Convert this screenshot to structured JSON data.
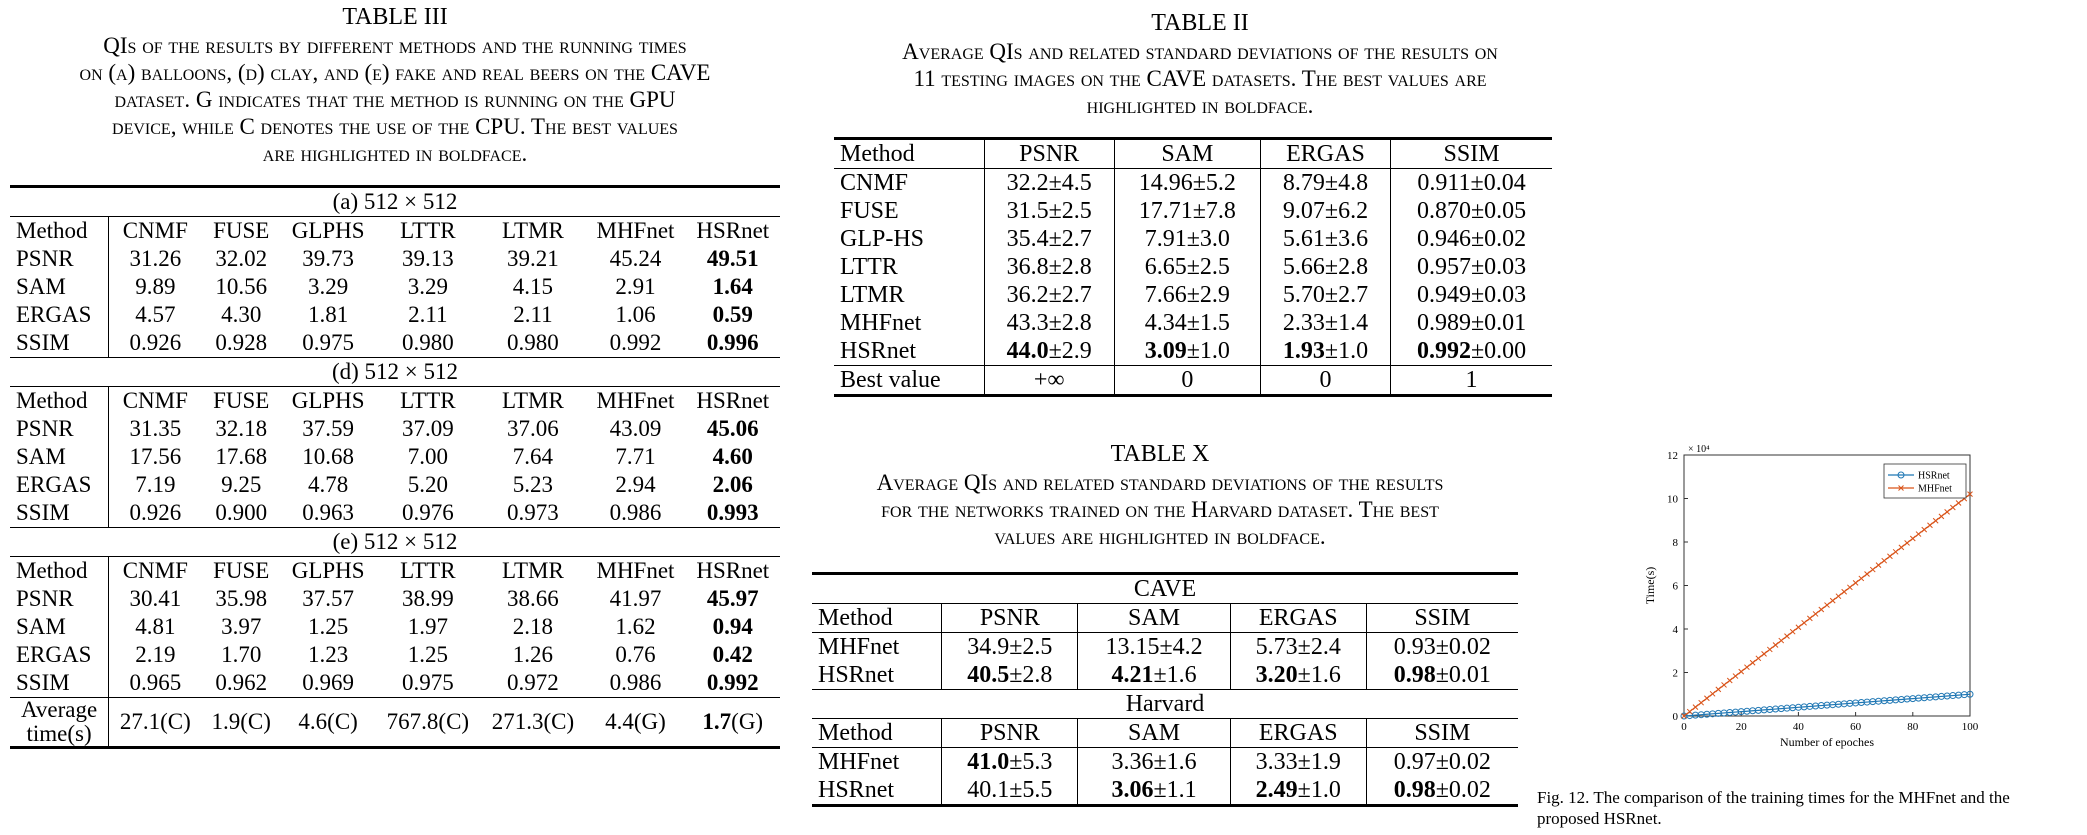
{
  "t3": {
    "label": "TABLE III",
    "caption_lines": [
      "QIs of the results by different methods and the running times",
      "on (a) balloons, (d) clay, and (e) fake and real beers on the CAVE",
      "dataset. G indicates that the method is running on the GPU",
      "device, while C denotes the use of the CPU. The best values",
      "are highlighted in boldface."
    ],
    "sub_a": "(a) 512 × 512",
    "sub_d": "(d) 512 × 512",
    "sub_e": "(e) 512 × 512",
    "headers": [
      "Method",
      "CNMF",
      "FUSE",
      "GLPHS",
      "LTTR",
      "LTMR",
      "MHFnet",
      "HSRnet"
    ],
    "a_rows": [
      [
        "PSNR",
        "31.26",
        "32.02",
        "39.73",
        "39.13",
        "39.21",
        "45.24",
        "49.51"
      ],
      [
        "SAM",
        "9.89",
        "10.56",
        "3.29",
        "3.29",
        "4.15",
        "2.91",
        "1.64"
      ],
      [
        "ERGAS",
        "4.57",
        "4.30",
        "1.81",
        "2.11",
        "2.11",
        "1.06",
        "0.59"
      ],
      [
        "SSIM",
        "0.926",
        "0.928",
        "0.975",
        "0.980",
        "0.980",
        "0.992",
        "0.996"
      ]
    ],
    "d_rows": [
      [
        "PSNR",
        "31.35",
        "32.18",
        "37.59",
        "37.09",
        "37.06",
        "43.09",
        "45.06"
      ],
      [
        "SAM",
        "17.56",
        "17.68",
        "10.68",
        "7.00",
        "7.64",
        "7.71",
        "4.60"
      ],
      [
        "ERGAS",
        "7.19",
        "9.25",
        "4.78",
        "5.20",
        "5.23",
        "2.94",
        "2.06"
      ],
      [
        "SSIM",
        "0.926",
        "0.900",
        "0.963",
        "0.976",
        "0.973",
        "0.986",
        "0.993"
      ]
    ],
    "e_rows": [
      [
        "PSNR",
        "30.41",
        "35.98",
        "37.57",
        "38.99",
        "38.66",
        "41.97",
        "45.97"
      ],
      [
        "SAM",
        "4.81",
        "3.97",
        "1.25",
        "1.97",
        "2.18",
        "1.62",
        "0.94"
      ],
      [
        "ERGAS",
        "2.19",
        "1.70",
        "1.23",
        "1.25",
        "1.26",
        "0.76",
        "0.42"
      ],
      [
        "SSIM",
        "0.965",
        "0.962",
        "0.969",
        "0.975",
        "0.972",
        "0.986",
        "0.992"
      ]
    ],
    "time_label_1": "Average",
    "time_label_2": "time(s)",
    "time_row": [
      "27.1(C)",
      "1.9(C)",
      "4.6(C)",
      "767.8(C)",
      "271.3(C)",
      "4.4(G)",
      "1.7",
      "(G)"
    ]
  },
  "t2": {
    "label": "TABLE II",
    "caption_lines": [
      "Average QIs and related standard deviations of the results on",
      "11 testing images on the CAVE datasets. The best values are",
      "highlighted in boldface."
    ],
    "headers": [
      "Method",
      "PSNR",
      "SAM",
      "ERGAS",
      "SSIM"
    ],
    "rows": [
      [
        "CNMF",
        "32.2±4.5",
        "14.96±5.2",
        "8.79±4.8",
        "0.911±0.04"
      ],
      [
        "FUSE",
        "31.5±2.5",
        "17.71±7.8",
        "9.07±6.2",
        "0.870±0.05"
      ],
      [
        "GLP-HS",
        "35.4±2.7",
        "7.91±3.0",
        "5.61±3.6",
        "0.946±0.02"
      ],
      [
        "LTTR",
        "36.8±2.8",
        "6.65±2.5",
        "5.66±2.8",
        "0.957±0.03"
      ],
      [
        "LTMR",
        "36.2±2.7",
        "7.66±2.9",
        "5.70±2.7",
        "0.949±0.03"
      ],
      [
        "MHFnet",
        "43.3±2.8",
        "4.34±1.5",
        "2.33±1.4",
        "0.989±0.01"
      ]
    ],
    "hsr": {
      "name": "HSRnet",
      "psnr_b": "44.0",
      "psnr_s": "±2.9",
      "sam_b": "3.09",
      "sam_s": "±1.0",
      "ergas_b": "1.93",
      "ergas_s": "±1.0",
      "ssim_b": "0.992",
      "ssim_s": "±0.00"
    },
    "best": [
      "Best value",
      "+∞",
      "0",
      "0",
      "1"
    ]
  },
  "t10": {
    "label": "TABLE X",
    "caption_lines": [
      "Average QIs and related standard deviations of the results",
      "for the networks trained on the Harvard dataset. The best",
      "values are highlighted in boldface."
    ],
    "cave": "CAVE",
    "harvard": "Harvard",
    "headers": [
      "Method",
      "PSNR",
      "SAM",
      "ERGAS",
      "SSIM"
    ],
    "cave_mhf": [
      "MHFnet",
      "34.9±2.5",
      "13.15±4.2",
      "5.73±2.4",
      "0.93±0.02"
    ],
    "cave_hsr": {
      "name": "HSRnet",
      "psnr_b": "40.5",
      "psnr_s": "±2.8",
      "sam_b": "4.21",
      "sam_s": "±1.6",
      "ergas_b": "3.20",
      "ergas_s": "±1.6",
      "ssim_b": "0.98",
      "ssim_s": "±0.01"
    },
    "harv_mhf": {
      "name": "MHFnet",
      "psnr_b": "41.0",
      "psnr_s": "±5.3",
      "sam": "3.36±1.6",
      "ergas": "3.33±1.9",
      "ssim": "0.97±0.02"
    },
    "harv_hsr": {
      "name": "HSRnet",
      "psnr": "40.1±5.5",
      "sam_b": "3.06",
      "sam_s": "±1.1",
      "ergas_b": "2.49",
      "ergas_s": "±1.0",
      "ssim_b": "0.98",
      "ssim_s": "±0.02"
    }
  },
  "fig": {
    "caption_1": "Fig. 12.  The comparison of the training times for the MHFnet and the",
    "caption_2": "proposed HSRnet.",
    "chart_data": {
      "type": "line",
      "xlabel": "Number of epoches",
      "ylabel": "Time(s)",
      "y_exponent": "× 10⁴",
      "xlim": [
        0,
        100
      ],
      "ylim": [
        0,
        12
      ],
      "x_ticks": [
        "0",
        "20",
        "40",
        "60",
        "80",
        "100"
      ],
      "y_ticks": [
        "0",
        "2",
        "4",
        "6",
        "8",
        "10",
        "12"
      ],
      "legend_position": "top-right",
      "series": [
        {
          "name": "HSRnet",
          "color": "#1f77b4",
          "marker": "circle",
          "x_start": 0,
          "x_end": 100,
          "x_step": 2,
          "y_start": 0.0,
          "y_end": 1.0
        },
        {
          "name": "MHFnet",
          "color": "#d95319",
          "marker": "x",
          "x_start": 0,
          "x_end": 100,
          "x_step": 2,
          "y_start": 0.0,
          "y_end": 10.2
        }
      ]
    }
  }
}
